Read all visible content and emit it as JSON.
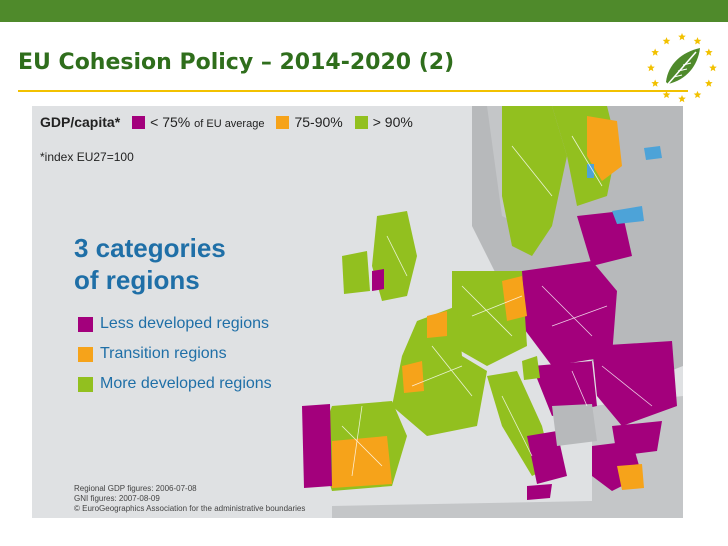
{
  "header": {
    "title": "EU Cohesion Policy – 2014-2020 (2)"
  },
  "logo": {
    "icon": "eu-stars-leaf-icon",
    "colors": {
      "stars": "#f2c100",
      "leaf": "#4f8a2b"
    }
  },
  "map": {
    "legend": {
      "title": "GDP/capita*",
      "items": [
        {
          "label": "< 75%",
          "suffix": "of EU average",
          "color": "#a3007c"
        },
        {
          "label": "75-90%",
          "suffix": "",
          "color": "#f6a31a"
        },
        {
          "label": "> 90%",
          "suffix": "",
          "color": "#92c01f"
        }
      ]
    },
    "index_note": "*index EU27=100",
    "heading_line1": "3 categories",
    "heading_line2": "of regions",
    "categories": [
      {
        "label": "Less developed regions",
        "color": "#a3007c"
      },
      {
        "label": "Transition regions",
        "color": "#f6a31a"
      },
      {
        "label": "More developed regions",
        "color": "#92c01f"
      }
    ],
    "footnotes": [
      "Regional GDP figures: 2006-07-08",
      "GNI figures: 2007-08-09",
      "© EuroGeographics Association for the administrative boundaries"
    ],
    "colors": {
      "background": "#dfe1e3",
      "non_eu_land": "#b7b9bb",
      "water": "#4da3d8",
      "boundary": "#ffffff"
    }
  }
}
